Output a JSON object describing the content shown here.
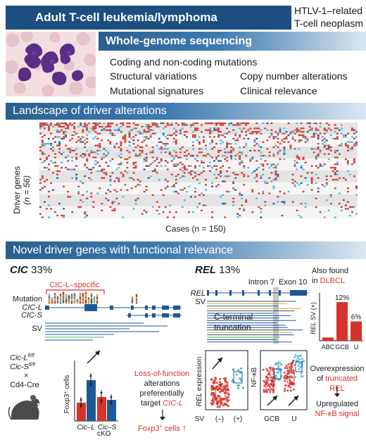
{
  "header": {
    "title": "Adult T-cell leukemia/lymphoma",
    "subtitle_line1": "HTLV-1–related",
    "subtitle_line2": "T-cell neoplasm"
  },
  "wgs": {
    "title": "Whole-genome sequencing",
    "items": [
      "Coding and non-coding mutations",
      "Structural variations",
      "Copy number alterations",
      "Mutational signatures",
      "Clinical relevance"
    ]
  },
  "landscape": {
    "title": "Landscape of driver alterations",
    "ylabel_line1": "Driver genes",
    "ylabel_line2": "(n = 56)",
    "xlabel": "Cases (n = 150)"
  },
  "novel": {
    "title": "Novel driver genes with functional relevance"
  },
  "cic": {
    "title_gene": "CIC",
    "title_pct": "33%",
    "bracket_label": "CIC-L–specific",
    "track_mutation": "Mutation",
    "track_cicl": "CIC-L",
    "track_cics": "CIC-S",
    "track_sv": "SV",
    "mouse_line1": "Cic-Lfl/fl",
    "mouse_line2": "Cic-Sfl/fl",
    "mouse_times": "×",
    "mouse_cre": "Cd4-Cre",
    "bar_ylabel": "Foxp3+ cells",
    "bar_x_cicl": "Cic–L",
    "bar_x_cics": "Cic–S",
    "bar_x_cko": "cKO",
    "lof_line1": "Loss-of-function",
    "lof_line2": "alterations",
    "lof_line3": "preferentially",
    "lof_line4": "target",
    "lof_target": "CIC-L",
    "foxp3_result": "Foxp3+ cells"
  },
  "rel": {
    "title_gene": "REL",
    "title_pct": "13%",
    "track_rel": "REL",
    "track_sv": "SV",
    "intron_label": "Intron 7",
    "exon_label": "Exon 10",
    "trunc_line1": "C-terminal",
    "trunc_line2": "truncation",
    "also_line1": "Also found",
    "also_line2": "in",
    "also_dlbcl": "DLBCL",
    "bar_ylabel": "REL SV (+)",
    "bar_categories": [
      "ABC",
      "GCB",
      "U"
    ],
    "bar_values": [
      1,
      12,
      6
    ],
    "bar_labels": [
      "",
      "12%",
      "6%"
    ],
    "expr_ylabel": "REL expression",
    "expr_x_label": "SV",
    "expr_x_neg": "(–)",
    "expr_x_pos": "(+)",
    "nfkb_ylabel": "NF-κB",
    "nfkb_x_gcb": "GCB",
    "nfkb_x_u": "U",
    "over_line1": "Overexpression",
    "over_line2": "of",
    "over_trunc": "truncated REL",
    "up_line1": "Upregulated",
    "up_line2": "NF-κB signal"
  },
  "colors": {
    "navy": "#1c4f80",
    "banner_blue": "#2a5f8f",
    "red": "#d6332b",
    "light_blue": "#4bb7dc",
    "dark_blue": "#1c5a96",
    "green": "#4caf50",
    "orange": "#f0a020"
  }
}
